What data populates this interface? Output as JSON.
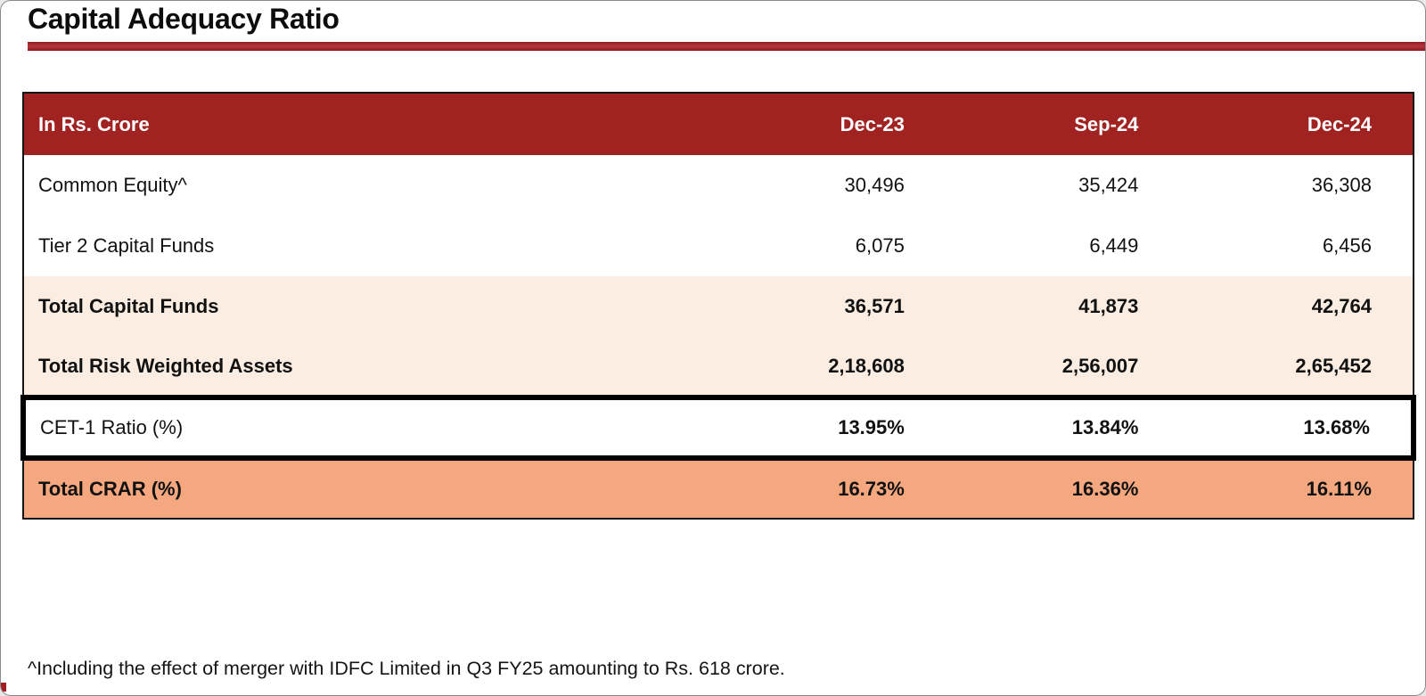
{
  "page": {
    "title": "Capital Adequacy Ratio",
    "footnote": "^Including the effect of merger with IDFC Limited in Q3 FY25 amounting to Rs. 618 crore."
  },
  "colors": {
    "header_bg": "#a02221",
    "title_rule": "#a81e28",
    "subtotal_row_bg": "#fbede2",
    "crar_row_bg": "#f5a87f",
    "highlight_border": "#000000",
    "header_text": "#ffffff"
  },
  "table": {
    "unit_label": "In Rs. Crore",
    "columns": [
      "Dec-23",
      "Sep-24",
      "Dec-24"
    ],
    "rows": [
      {
        "label": "Common Equity^",
        "values": [
          "30,496",
          "35,424",
          "36,308"
        ]
      },
      {
        "label": "Tier 2 Capital Funds",
        "values": [
          "6,075",
          "6,449",
          "6,456"
        ]
      },
      {
        "label": "Total Capital Funds",
        "values": [
          "36,571",
          "41,873",
          "42,764"
        ]
      },
      {
        "label": "Total Risk Weighted Assets",
        "values": [
          "2,18,608",
          "2,56,007",
          "2,65,452"
        ]
      },
      {
        "label": "CET-1 Ratio (%)",
        "values": [
          "13.95%",
          "13.84%",
          "13.68%"
        ]
      },
      {
        "label": "Total CRAR (%)",
        "values": [
          "16.73%",
          "16.36%",
          "16.11%"
        ]
      }
    ]
  },
  "chart_data": {
    "type": "table",
    "title": "Capital Adequacy Ratio",
    "unit": "In Rs. Crore",
    "categories": [
      "Dec-23",
      "Sep-24",
      "Dec-24"
    ],
    "series": [
      {
        "name": "Common Equity^",
        "values": [
          30496,
          35424,
          36308
        ]
      },
      {
        "name": "Tier 2 Capital Funds",
        "values": [
          6075,
          6449,
          6456
        ]
      },
      {
        "name": "Total Capital Funds",
        "values": [
          36571,
          41873,
          42764
        ]
      },
      {
        "name": "Total Risk Weighted Assets",
        "values": [
          218608,
          256007,
          265452
        ]
      },
      {
        "name": "CET-1 Ratio (%)",
        "values": [
          13.95,
          13.84,
          13.68
        ]
      },
      {
        "name": "Total CRAR (%)",
        "values": [
          16.73,
          16.36,
          16.11
        ]
      }
    ],
    "annotations": [
      "^Including the effect of merger with IDFC Limited in Q3 FY25 amounting to Rs. 618 crore."
    ]
  }
}
